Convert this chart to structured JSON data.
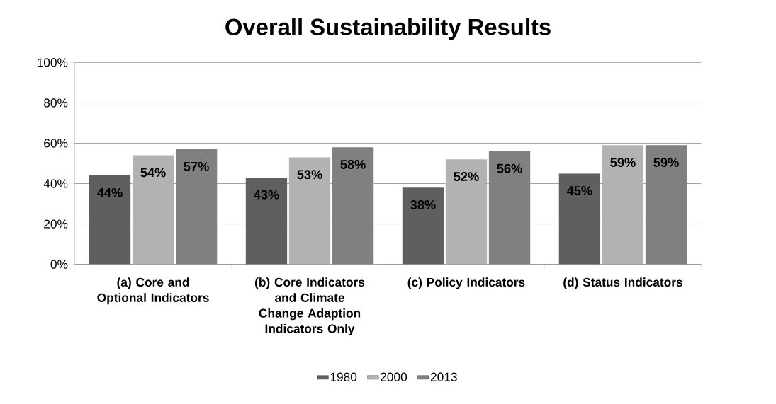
{
  "chart_data": {
    "type": "bar",
    "title": "Overall Sustainability Results",
    "categories": [
      "(a) Core and Optional Indicators",
      "(b) Core Indicators and Climate Change Adaption Indicators Only",
      "(c) Policy Indicators",
      "(d) Status Indicators"
    ],
    "series": [
      {
        "name": "1980",
        "color": "#5f5f5f",
        "values": [
          44,
          43,
          38,
          45
        ],
        "value_labels": [
          "44%",
          "43%",
          "38%",
          "45%"
        ]
      },
      {
        "name": "2000",
        "color": "#b2b2b2",
        "values": [
          54,
          53,
          52,
          59
        ],
        "value_labels": [
          "54%",
          "53%",
          "52%",
          "59%"
        ]
      },
      {
        "name": "2013",
        "color": "#808080",
        "values": [
          57,
          58,
          56,
          59
        ],
        "value_labels": [
          "57%",
          "58%",
          "56%",
          "59%"
        ]
      }
    ],
    "ylim": [
      0,
      100
    ],
    "yticks": [
      {
        "value": 0,
        "label": "0%"
      },
      {
        "value": 20,
        "label": "20%"
      },
      {
        "value": 40,
        "label": "40%"
      },
      {
        "value": 60,
        "label": "60%"
      },
      {
        "value": 80,
        "label": "80%"
      },
      {
        "value": 100,
        "label": "100%"
      }
    ],
    "grid": "y",
    "legend": "bottom"
  }
}
